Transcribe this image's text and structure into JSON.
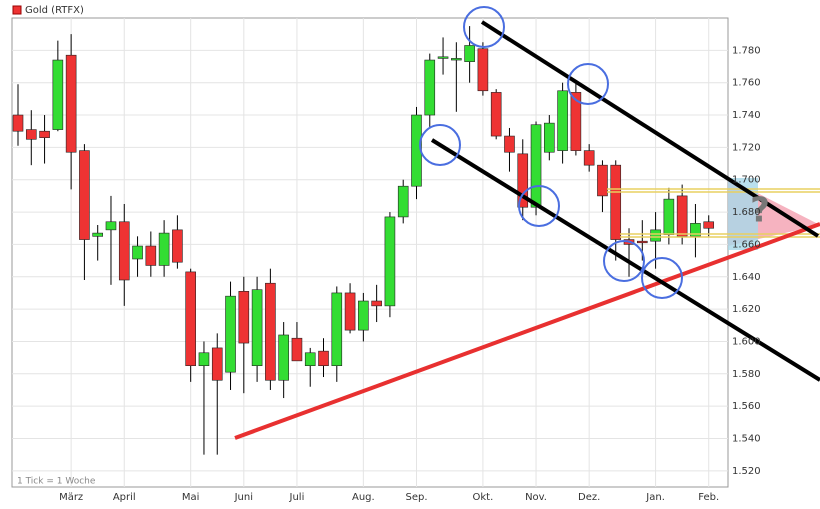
{
  "chart_data": {
    "type": "candlestick",
    "legend": "Gold (RTFX)",
    "footnote": "1 Tick = 1 Woche",
    "annotation": "?",
    "series": [
      {
        "name": "Gold (RTFX)",
        "color": "#ee3333",
        "up_color": "#33dd33",
        "down_color": "#ee3333",
        "open": [
          1740,
          1731,
          1730,
          1731,
          1777,
          1718,
          1665,
          1669,
          1674,
          1651,
          1659,
          1647,
          1669,
          1643,
          1585,
          1596,
          1581,
          1631,
          1585,
          1636,
          1576,
          1602,
          1585,
          1594,
          1585,
          1630,
          1607,
          1625,
          1622,
          1677,
          1696,
          1740,
          1775,
          1774,
          1773,
          1781,
          1754,
          1727,
          1716,
          1683,
          1717,
          1718,
          1754,
          1718,
          1709,
          1709,
          1663,
          1662,
          1662,
          1666,
          1690,
          1665,
          1674
        ],
        "high": [
          1759,
          1743,
          1740,
          1786,
          1790,
          1722,
          1672,
          1690,
          1685,
          1665,
          1668,
          1675,
          1678,
          1645,
          1600,
          1605,
          1637,
          1640,
          1640,
          1645,
          1612,
          1612,
          1596,
          1602,
          1634,
          1636,
          1630,
          1635,
          1680,
          1700,
          1745,
          1778,
          1788,
          1785,
          1795,
          1785,
          1756,
          1732,
          1725,
          1736,
          1740,
          1760,
          1760,
          1722,
          1712,
          1712,
          1670,
          1675,
          1680,
          1695,
          1697,
          1685,
          1678
        ],
        "low": [
          1721,
          1709,
          1710,
          1730,
          1694,
          1638,
          1650,
          1635,
          1622,
          1640,
          1640,
          1640,
          1645,
          1575,
          1530,
          1530,
          1570,
          1568,
          1575,
          1570,
          1565,
          1590,
          1572,
          1578,
          1575,
          1605,
          1600,
          1612,
          1615,
          1673,
          1688,
          1732,
          1765,
          1742,
          1760,
          1752,
          1725,
          1705,
          1675,
          1678,
          1712,
          1710,
          1715,
          1705,
          1680,
          1650,
          1640,
          1650,
          1645,
          1660,
          1660,
          1652,
          1665
        ],
        "close": [
          1730,
          1725,
          1726,
          1774,
          1717,
          1663,
          1667,
          1674,
          1638,
          1659,
          1647,
          1667,
          1649,
          1585,
          1593,
          1576,
          1628,
          1599,
          1632,
          1576,
          1604,
          1588,
          1593,
          1585,
          1630,
          1607,
          1625,
          1622,
          1677,
          1696,
          1740,
          1774,
          1776,
          1775,
          1783,
          1755,
          1727,
          1717,
          1683,
          1734,
          1735,
          1755,
          1718,
          1709,
          1690,
          1663,
          1660,
          1661,
          1669,
          1688,
          1665,
          1673,
          1670
        ]
      }
    ],
    "categories": [
      null,
      null,
      null,
      null,
      "März",
      null,
      null,
      null,
      "April",
      null,
      null,
      null,
      null,
      "Mai",
      null,
      null,
      null,
      "Juni",
      null,
      null,
      null,
      "Juli",
      null,
      null,
      null,
      null,
      "Aug.",
      null,
      null,
      null,
      "Sep.",
      null,
      null,
      null,
      null,
      "Okt.",
      null,
      null,
      null,
      "Nov.",
      null,
      null,
      null,
      "Dez.",
      null,
      null,
      null,
      null,
      "Jan.",
      null,
      null,
      null,
      "Feb.",
      null
    ],
    "ylim": [
      1510,
      1800
    ],
    "yticks": [
      {
        "value": 1520,
        "label": "1.520"
      },
      {
        "value": 1540,
        "label": "1.540"
      },
      {
        "value": 1560,
        "label": "1.560"
      },
      {
        "value": 1580,
        "label": "1.580"
      },
      {
        "value": 1600,
        "label": "1.600"
      },
      {
        "value": 1620,
        "label": "1.620"
      },
      {
        "value": 1640,
        "label": "1.640"
      },
      {
        "value": 1660,
        "label": "1.660"
      },
      {
        "value": 1680,
        "label": "1.680"
      },
      {
        "value": 1700,
        "label": "1.700"
      },
      {
        "value": 1720,
        "label": "1.720"
      },
      {
        "value": 1740,
        "label": "1.740"
      },
      {
        "value": 1760,
        "label": "1.760"
      },
      {
        "value": 1780,
        "label": "1.780"
      }
    ],
    "grid": true
  }
}
